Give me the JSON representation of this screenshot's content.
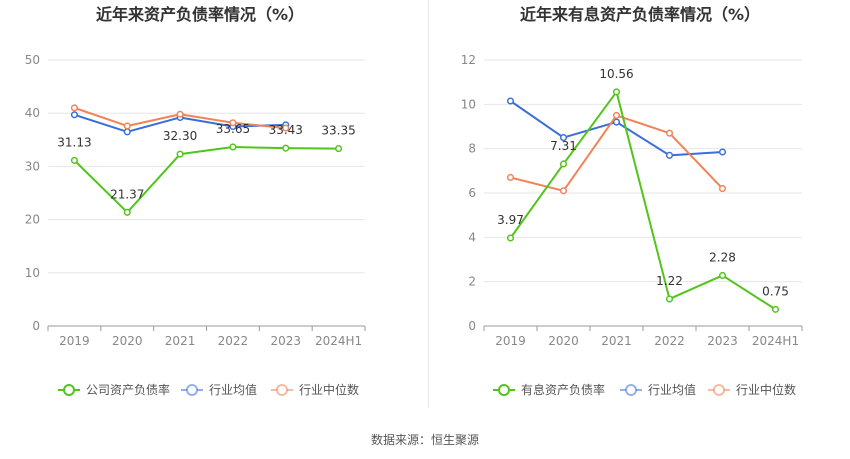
{
  "source_label": "数据来源：恒生聚源",
  "colors": {
    "company": "#52c41a",
    "industry_avg": "#3a6fd8",
    "industry_median": "#f08358"
  },
  "chart_data": [
    {
      "type": "line",
      "title": "近年来资产负债率情况（%）",
      "categories": [
        "2019",
        "2020",
        "2021",
        "2022",
        "2023",
        "2024H1"
      ],
      "ylim": [
        0,
        50
      ],
      "yticks": [
        0,
        10,
        20,
        30,
        40,
        50
      ],
      "grid": true,
      "legend_position": "bottom",
      "series": [
        {
          "name": "公司资产负债率",
          "color": "#52c41a",
          "values": [
            31.13,
            21.37,
            32.3,
            33.65,
            33.43,
            33.35
          ],
          "labels": [
            "31.13",
            "21.37",
            "32.30",
            "33.65",
            "33.43",
            "33.35"
          ]
        },
        {
          "name": "行业均值",
          "color": "#3a6fd8",
          "values": [
            39.7,
            36.5,
            39.2,
            37.5,
            37.8,
            null
          ]
        },
        {
          "name": "行业中位数",
          "color": "#f08358",
          "values": [
            41.0,
            37.6,
            39.8,
            38.2,
            37.2,
            null
          ]
        }
      ]
    },
    {
      "type": "line",
      "title": "近年来有息资产负债率情况（%）",
      "categories": [
        "2019",
        "2020",
        "2021",
        "2022",
        "2023",
        "2024H1"
      ],
      "ylim": [
        0,
        12
      ],
      "yticks": [
        0,
        2,
        4,
        6,
        8,
        10,
        12
      ],
      "grid": true,
      "legend_position": "bottom",
      "series": [
        {
          "name": "有息资产负债率",
          "color": "#52c41a",
          "values": [
            3.97,
            7.31,
            10.56,
            1.22,
            2.28,
            0.75
          ],
          "labels": [
            "3.97",
            "7.31",
            "10.56",
            "1.22",
            "2.28",
            "0.75"
          ]
        },
        {
          "name": "行业均值",
          "color": "#3a6fd8",
          "values": [
            10.15,
            8.5,
            9.2,
            7.7,
            7.85,
            null
          ]
        },
        {
          "name": "行业中位数",
          "color": "#f08358",
          "values": [
            6.7,
            6.1,
            9.5,
            8.7,
            6.2,
            null
          ]
        }
      ]
    }
  ]
}
